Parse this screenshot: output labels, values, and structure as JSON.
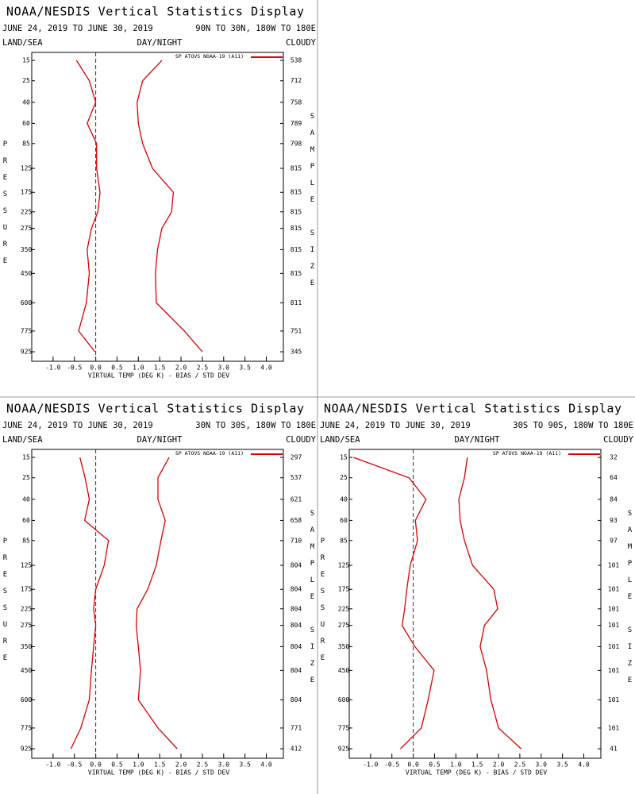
{
  "chart_data": [
    {
      "type": "line",
      "title": "NOAA/NESDIS Vertical Statistics Display",
      "date_range": "JUNE 24, 2019 TO JUNE 30, 2019",
      "region": "90N TO 30N, 180W TO 180E",
      "surface": "LAND/SEA",
      "time": "DAY/NIGHT",
      "sky": "CLOUDY",
      "ylabel": "PRESSURE",
      "y2label": "SAMPLE SIZE",
      "xlabel": "VIRTUAL TEMP (DEG K) - BIAS / STD DEV",
      "xlim": [
        -1.5,
        4.4
      ],
      "xticks": [
        {
          "value": -1,
          "label": "-1.0"
        },
        -0.5,
        {
          "value": 0,
          "label": "0.0"
        },
        0.5,
        {
          "value": 1,
          "label": "1.0"
        },
        1.5,
        {
          "value": 2,
          "label": "2.0"
        },
        2.5,
        {
          "value": 3,
          "label": "3.0"
        },
        3.5,
        {
          "value": 4,
          "label": "4.0"
        }
      ],
      "ylim": [
        12,
        1000
      ],
      "yticks": [
        15,
        25,
        40,
        60,
        85,
        125,
        175,
        225,
        275,
        350,
        450,
        600,
        775,
        925
      ],
      "sample_size": [
        538,
        712,
        758,
        789,
        798,
        815,
        815,
        815,
        815,
        815,
        815,
        811,
        751,
        345
      ],
      "series": [
        {
          "name": "SP ATOVS NOAA-19 (A11)",
          "color": "#dd0000",
          "bias": [
            -0.45,
            -0.15,
            0.0,
            -0.2,
            0.02,
            0.02,
            0.1,
            0.05,
            -0.1,
            -0.2,
            -0.15,
            -0.22,
            -0.4,
            -0.02
          ],
          "std_dev": [
            1.55,
            1.1,
            0.97,
            1.0,
            1.1,
            1.33,
            1.82,
            1.78,
            1.55,
            1.45,
            1.4,
            1.42,
            2.08,
            2.5
          ]
        }
      ]
    },
    {
      "type": "line",
      "title": "NOAA/NESDIS Vertical Statistics Display",
      "date_range": "JUNE 24, 2019 TO JUNE 30, 2019",
      "region": "30N TO 30S, 180W TO 180E",
      "surface": "LAND/SEA",
      "time": "DAY/NIGHT",
      "sky": "CLOUDY",
      "ylabel": "PRESSURE",
      "y2label": "SAMPLE SIZE",
      "xlabel": "VIRTUAL TEMP (DEG K) - BIAS / STD DEV",
      "xlim": [
        -1.5,
        4.4
      ],
      "xticks": [
        {
          "value": -1,
          "label": "-1.0"
        },
        -0.5,
        {
          "value": 0,
          "label": "0.0"
        },
        0.5,
        {
          "value": 1,
          "label": "1.0"
        },
        1.5,
        {
          "value": 2,
          "label": "2.0"
        },
        2.5,
        {
          "value": 3,
          "label": "3.0"
        },
        3.5,
        {
          "value": 4,
          "label": "4.0"
        }
      ],
      "ylim": [
        12,
        1000
      ],
      "yticks": [
        15,
        25,
        40,
        60,
        85,
        125,
        175,
        225,
        275,
        350,
        450,
        600,
        775,
        925
      ],
      "sample_size": [
        297,
        537,
        621,
        658,
        710,
        804,
        804,
        804,
        804,
        804,
        804,
        804,
        771,
        412
      ],
      "series": [
        {
          "name": "SP ATOVS NOAA-19 (A11)",
          "color": "#dd0000",
          "bias": [
            -0.37,
            -0.25,
            -0.15,
            -0.26,
            0.3,
            0.2,
            0.0,
            -0.05,
            0.0,
            -0.05,
            -0.1,
            -0.15,
            -0.35,
            -0.58
          ],
          "std_dev": [
            1.72,
            1.46,
            1.46,
            1.63,
            1.53,
            1.42,
            1.22,
            0.97,
            0.95,
            1.0,
            1.05,
            1.0,
            1.46,
            1.91
          ]
        }
      ]
    },
    {
      "type": "line",
      "title": "NOAA/NESDIS Vertical Statistics Display",
      "date_range": "JUNE 24, 2019 TO JUNE 30, 2019",
      "region": "30S TO 90S, 180W TO 180E",
      "surface": "LAND/SEA",
      "time": "DAY/NIGHT",
      "sky": "CLOUDY",
      "ylabel": "PRESSURE",
      "y2label": "SAMPLE SIZE",
      "xlabel": "VIRTUAL TEMP (DEG K) - BIAS / STD DEV",
      "xlim": [
        -1.5,
        4.4
      ],
      "xticks": [
        {
          "value": -1,
          "label": "-1.0"
        },
        -0.5,
        {
          "value": 0,
          "label": "0.0"
        },
        0.5,
        {
          "value": 1,
          "label": "1.0"
        },
        1.5,
        {
          "value": 2,
          "label": "2.0"
        },
        2.5,
        {
          "value": 3,
          "label": "3.0"
        },
        3.5,
        {
          "value": 4,
          "label": "4.0"
        }
      ],
      "ylim": [
        12,
        1000
      ],
      "yticks": [
        15,
        25,
        40,
        60,
        85,
        125,
        175,
        225,
        275,
        350,
        450,
        600,
        775,
        925
      ],
      "sample_size": [
        32,
        64,
        84,
        93,
        97,
        101,
        101,
        101,
        101,
        101,
        101,
        101,
        101,
        41
      ],
      "series": [
        {
          "name": "SP ATOVS NOAA-19 (A11)",
          "color": "#dd0000",
          "bias": [
            -1.4,
            -0.1,
            0.3,
            0.05,
            0.1,
            -0.07,
            -0.15,
            -0.2,
            -0.26,
            0.04,
            0.49,
            0.35,
            0.19,
            -0.3
          ],
          "std_dev": [
            1.27,
            1.2,
            1.07,
            1.1,
            1.2,
            1.39,
            1.89,
            1.98,
            1.67,
            1.57,
            1.72,
            1.82,
            2.0,
            2.53
          ]
        }
      ]
    }
  ]
}
